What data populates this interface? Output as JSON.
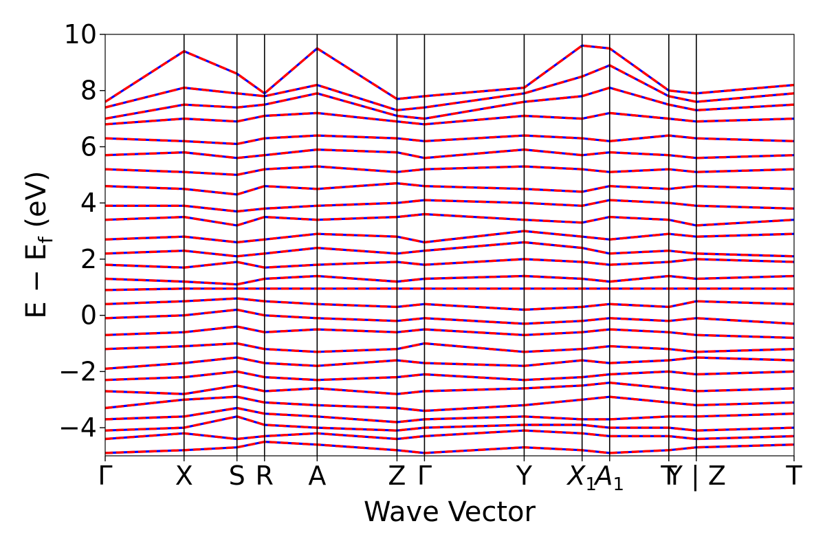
{
  "chart_data": {
    "type": "line",
    "title": "",
    "xlabel": "Wave Vector",
    "ylabel": "E − E",
    "ylabel_subscript": "f",
    "ylabel_unit": "(eV)",
    "ylim": [
      -5,
      10
    ],
    "y_ticks": [
      {
        "value": 10,
        "label": "10"
      },
      {
        "value": 8,
        "label": "8"
      },
      {
        "value": 6,
        "label": "6"
      },
      {
        "value": 4,
        "label": "4"
      },
      {
        "value": 2,
        "label": "2"
      },
      {
        "value": 0,
        "label": "0"
      },
      {
        "value": -2,
        "label": "−2"
      },
      {
        "value": -4,
        "label": "−4"
      }
    ],
    "kpath": [
      {
        "label": "Γ",
        "k": 0.0
      },
      {
        "label": "X",
        "k": 0.1145
      },
      {
        "label": "S",
        "k": 0.1913
      },
      {
        "label": "R",
        "k": 0.2313
      },
      {
        "label": "A",
        "k": 0.3077
      },
      {
        "label": "Z",
        "k": 0.4236
      },
      {
        "label": "Γ",
        "k": 0.4635
      },
      {
        "label": "Y",
        "k": 0.6082
      },
      {
        "label": "X",
        "sub": "1",
        "italic": true,
        "k": 0.6923
      },
      {
        "label": "A",
        "sub": "1",
        "italic": true,
        "k": 0.7323
      },
      {
        "label": "T",
        "k": 0.8182
      },
      {
        "label": "Y",
        "k": 0.8182
      },
      {
        "label": "Y | Z",
        "k": 0.8581
      },
      {
        "label": "T",
        "k": 1.0
      }
    ],
    "tick_labels_display": [
      {
        "text": "Γ",
        "k": 0.0
      },
      {
        "text": "X",
        "k": 0.1145
      },
      {
        "text": "S",
        "k": 0.1913
      },
      {
        "text": "R",
        "k": 0.2313
      },
      {
        "text": "A",
        "k": 0.3077
      },
      {
        "text": "Z",
        "k": 0.4236
      },
      {
        "text": "Γ",
        "k": 0.4635
      },
      {
        "text": "Y",
        "k": 0.6082
      },
      {
        "text": "X",
        "sub": "1",
        "italic": true,
        "k": 0.6923
      },
      {
        "text": "A",
        "sub": "1",
        "italic": true,
        "k": 0.7323
      },
      {
        "text": "T",
        "k": 0.8182
      },
      {
        "text": "Y | Z",
        "k": 0.8581
      },
      {
        "text": "T",
        "k": 1.0
      }
    ],
    "vertical_lines_k": [
      0.1145,
      0.1913,
      0.2313,
      0.3077,
      0.4236,
      0.4635,
      0.6082,
      0.6923,
      0.7323,
      0.8182,
      0.8581
    ],
    "series": [
      {
        "style": "solid",
        "color": "#0000ff"
      },
      {
        "style": "dashed",
        "color": "#ff0000"
      }
    ],
    "bands": [
      {
        "k": [
          0,
          0.1145,
          0.1913,
          0.2313,
          0.3077,
          0.4236,
          0.4635,
          0.6082,
          0.6923,
          0.7323,
          0.8182,
          0.8581,
          1.0
        ],
        "E": [
          -4.9,
          -4.8,
          -4.7,
          -4.5,
          -4.6,
          -4.8,
          -4.9,
          -4.7,
          -4.8,
          -4.9,
          -4.8,
          -4.7,
          -4.6
        ]
      },
      {
        "k": [
          0,
          0.1145,
          0.1913,
          0.2313,
          0.3077,
          0.4236,
          0.4635,
          0.6082,
          0.6923,
          0.7323,
          0.8182,
          0.8581,
          1.0
        ],
        "E": [
          -4.4,
          -4.2,
          -4.4,
          -4.3,
          -4.2,
          -4.4,
          -4.3,
          -4.1,
          -4.2,
          -4.3,
          -4.3,
          -4.4,
          -4.3
        ]
      },
      {
        "k": [
          0,
          0.1145,
          0.1913,
          0.2313,
          0.3077,
          0.4236,
          0.4635,
          0.6082,
          0.6923,
          0.7323,
          0.8182,
          0.8581,
          1.0
        ],
        "E": [
          -4.1,
          -4.0,
          -3.6,
          -3.9,
          -4.0,
          -4.1,
          -4.0,
          -3.9,
          -3.9,
          -4.0,
          -4.0,
          -4.1,
          -4.0
        ]
      },
      {
        "k": [
          0,
          0.1145,
          0.1913,
          0.2313,
          0.3077,
          0.4236,
          0.4635,
          0.6082,
          0.6923,
          0.7323,
          0.8182,
          0.8581,
          1.0
        ],
        "E": [
          -3.7,
          -3.6,
          -3.3,
          -3.5,
          -3.6,
          -3.8,
          -3.7,
          -3.6,
          -3.7,
          -3.7,
          -3.6,
          -3.6,
          -3.5
        ]
      },
      {
        "k": [
          0,
          0.1145,
          0.1913,
          0.2313,
          0.3077,
          0.4236,
          0.4635,
          0.6082,
          0.6923,
          0.7323,
          0.8182,
          0.8581,
          1.0
        ],
        "E": [
          -3.3,
          -3.0,
          -2.9,
          -3.1,
          -3.2,
          -3.3,
          -3.4,
          -3.2,
          -3.0,
          -2.9,
          -3.1,
          -3.2,
          -3.1
        ]
      },
      {
        "k": [
          0,
          0.1145,
          0.1913,
          0.2313,
          0.3077,
          0.4236,
          0.4635,
          0.6082,
          0.6923,
          0.7323,
          0.8182,
          0.8581,
          1.0
        ],
        "E": [
          -2.7,
          -2.8,
          -2.5,
          -2.7,
          -2.6,
          -2.8,
          -2.7,
          -2.6,
          -2.5,
          -2.4,
          -2.6,
          -2.7,
          -2.6
        ]
      },
      {
        "k": [
          0,
          0.1145,
          0.1913,
          0.2313,
          0.3077,
          0.4236,
          0.4635,
          0.6082,
          0.6923,
          0.7323,
          0.8182,
          0.8581,
          1.0
        ],
        "E": [
          -2.3,
          -2.2,
          -2.0,
          -2.2,
          -2.3,
          -2.2,
          -2.1,
          -2.3,
          -2.2,
          -2.1,
          -2.0,
          -2.1,
          -2.0
        ]
      },
      {
        "k": [
          0,
          0.1145,
          0.1913,
          0.2313,
          0.3077,
          0.4236,
          0.4635,
          0.6082,
          0.6923,
          0.7323,
          0.8182,
          0.8581,
          1.0
        ],
        "E": [
          -1.9,
          -1.7,
          -1.5,
          -1.7,
          -1.8,
          -1.6,
          -1.7,
          -1.8,
          -1.6,
          -1.7,
          -1.6,
          -1.5,
          -1.6
        ]
      },
      {
        "k": [
          0,
          0.1145,
          0.1913,
          0.2313,
          0.3077,
          0.4236,
          0.4635,
          0.6082,
          0.6923,
          0.7323,
          0.8182,
          0.8581,
          1.0
        ],
        "E": [
          -1.2,
          -1.1,
          -1.0,
          -1.2,
          -1.3,
          -1.2,
          -1.0,
          -1.3,
          -1.2,
          -1.1,
          -1.2,
          -1.3,
          -1.2
        ]
      },
      {
        "k": [
          0,
          0.1145,
          0.1913,
          0.2313,
          0.3077,
          0.4236,
          0.4635,
          0.6082,
          0.6923,
          0.7323,
          0.8182,
          0.8581,
          1.0
        ],
        "E": [
          -0.7,
          -0.6,
          -0.4,
          -0.6,
          -0.5,
          -0.6,
          -0.5,
          -0.7,
          -0.6,
          -0.5,
          -0.6,
          -0.7,
          -0.8
        ]
      },
      {
        "k": [
          0,
          0.1145,
          0.1913,
          0.2313,
          0.3077,
          0.4236,
          0.4635,
          0.6082,
          0.6923,
          0.7323,
          0.8182,
          0.8581,
          1.0
        ],
        "E": [
          -0.1,
          0.0,
          0.2,
          0.0,
          -0.1,
          -0.2,
          -0.1,
          -0.3,
          -0.2,
          -0.1,
          -0.2,
          -0.1,
          -0.3
        ]
      },
      {
        "k": [
          0,
          0.1145,
          0.1913,
          0.2313,
          0.3077,
          0.4236,
          0.4635,
          0.6082,
          0.6923,
          0.7323,
          0.8182,
          0.8581,
          1.0
        ],
        "E": [
          0.4,
          0.5,
          0.6,
          0.5,
          0.4,
          0.3,
          0.4,
          0.2,
          0.3,
          0.4,
          0.3,
          0.5,
          0.4
        ]
      },
      {
        "k": [
          0,
          0.1145,
          0.1913,
          0.2313,
          0.3077,
          0.4236,
          0.4635,
          0.6082,
          0.6923,
          0.7323,
          0.8182,
          0.8581,
          1.0
        ],
        "E": [
          0.9,
          0.95,
          0.95,
          0.95,
          0.95,
          0.95,
          0.95,
          0.95,
          0.95,
          0.95,
          0.95,
          0.95,
          0.95
        ]
      },
      {
        "k": [
          0,
          0.1145,
          0.1913,
          0.2313,
          0.3077,
          0.4236,
          0.4635,
          0.6082,
          0.6923,
          0.7323,
          0.8182,
          0.8581,
          1.0
        ],
        "E": [
          1.3,
          1.2,
          1.1,
          1.3,
          1.4,
          1.2,
          1.3,
          1.4,
          1.3,
          1.2,
          1.4,
          1.3,
          1.4
        ]
      },
      {
        "k": [
          0,
          0.1145,
          0.1913,
          0.2313,
          0.3077,
          0.4236,
          0.4635,
          0.6082,
          0.6923,
          0.7323,
          0.8182,
          0.8581,
          1.0
        ],
        "E": [
          1.8,
          1.7,
          1.9,
          1.7,
          1.8,
          1.9,
          1.8,
          2.0,
          1.9,
          1.8,
          1.9,
          2.0,
          1.9
        ]
      },
      {
        "k": [
          0,
          0.1145,
          0.1913,
          0.2313,
          0.3077,
          0.4236,
          0.4635,
          0.6082,
          0.6923,
          0.7323,
          0.8182,
          0.8581,
          1.0
        ],
        "E": [
          2.2,
          2.3,
          2.1,
          2.2,
          2.4,
          2.2,
          2.3,
          2.6,
          2.4,
          2.2,
          2.3,
          2.2,
          2.1
        ]
      },
      {
        "k": [
          0,
          0.1145,
          0.1913,
          0.2313,
          0.3077,
          0.4236,
          0.4635,
          0.6082,
          0.6923,
          0.7323,
          0.8182,
          0.8581,
          1.0
        ],
        "E": [
          2.7,
          2.8,
          2.6,
          2.7,
          2.9,
          2.8,
          2.6,
          3.0,
          2.8,
          2.7,
          2.9,
          2.8,
          2.9
        ]
      },
      {
        "k": [
          0,
          0.1145,
          0.1913,
          0.2313,
          0.3077,
          0.4236,
          0.4635,
          0.6082,
          0.6923,
          0.7323,
          0.8182,
          0.8581,
          1.0
        ],
        "E": [
          3.4,
          3.5,
          3.2,
          3.5,
          3.4,
          3.5,
          3.6,
          3.4,
          3.3,
          3.5,
          3.4,
          3.2,
          3.4
        ]
      },
      {
        "k": [
          0,
          0.1145,
          0.1913,
          0.2313,
          0.3077,
          0.4236,
          0.4635,
          0.6082,
          0.6923,
          0.7323,
          0.8182,
          0.8581,
          1.0
        ],
        "E": [
          3.9,
          3.9,
          3.7,
          3.8,
          3.9,
          4.0,
          4.1,
          4.0,
          3.9,
          4.1,
          4.0,
          3.9,
          3.8
        ]
      },
      {
        "k": [
          0,
          0.1145,
          0.1913,
          0.2313,
          0.3077,
          0.4236,
          0.4635,
          0.6082,
          0.6923,
          0.7323,
          0.8182,
          0.8581,
          1.0
        ],
        "E": [
          4.6,
          4.5,
          4.3,
          4.6,
          4.5,
          4.7,
          4.6,
          4.5,
          4.4,
          4.6,
          4.5,
          4.6,
          4.5
        ]
      },
      {
        "k": [
          0,
          0.1145,
          0.1913,
          0.2313,
          0.3077,
          0.4236,
          0.4635,
          0.6082,
          0.6923,
          0.7323,
          0.8182,
          0.8581,
          1.0
        ],
        "E": [
          5.2,
          5.1,
          5.0,
          5.2,
          5.3,
          5.1,
          5.2,
          5.3,
          5.2,
          5.1,
          5.2,
          5.1,
          5.2
        ]
      },
      {
        "k": [
          0,
          0.1145,
          0.1913,
          0.2313,
          0.3077,
          0.4236,
          0.4635,
          0.6082,
          0.6923,
          0.7323,
          0.8182,
          0.8581,
          1.0
        ],
        "E": [
          5.7,
          5.8,
          5.6,
          5.7,
          5.9,
          5.8,
          5.6,
          5.9,
          5.7,
          5.8,
          5.7,
          5.6,
          5.7
        ]
      },
      {
        "k": [
          0,
          0.1145,
          0.1913,
          0.2313,
          0.3077,
          0.4236,
          0.4635,
          0.6082,
          0.6923,
          0.7323,
          0.8182,
          0.8581,
          1.0
        ],
        "E": [
          6.3,
          6.2,
          6.1,
          6.3,
          6.4,
          6.3,
          6.2,
          6.4,
          6.3,
          6.2,
          6.4,
          6.3,
          6.2
        ]
      },
      {
        "k": [
          0,
          0.1145,
          0.1913,
          0.2313,
          0.3077,
          0.4236,
          0.4635,
          0.6082,
          0.6923,
          0.7323,
          0.8182,
          0.8581,
          1.0
        ],
        "E": [
          6.8,
          7.0,
          6.9,
          7.1,
          7.2,
          6.9,
          6.8,
          7.1,
          7.0,
          7.2,
          7.0,
          6.9,
          7.0
        ]
      },
      {
        "k": [
          0,
          0.1145,
          0.1913,
          0.2313,
          0.3077,
          0.4236,
          0.4635,
          0.6082,
          0.6923,
          0.7323,
          0.8182,
          0.8581,
          1.0
        ],
        "E": [
          7.0,
          7.5,
          7.4,
          7.5,
          7.9,
          7.1,
          7.0,
          7.6,
          7.8,
          8.1,
          7.5,
          7.3,
          7.5
        ]
      },
      {
        "k": [
          0,
          0.1145,
          0.1913,
          0.2313,
          0.3077,
          0.4236,
          0.4635,
          0.6082,
          0.6923,
          0.7323,
          0.8182,
          0.8581,
          1.0
        ],
        "E": [
          7.4,
          8.1,
          7.9,
          7.8,
          8.2,
          7.3,
          7.4,
          7.9,
          8.5,
          8.9,
          7.8,
          7.6,
          7.9
        ]
      },
      {
        "k": [
          0,
          0.1145,
          0.1913,
          0.2313,
          0.3077,
          0.4236,
          0.4635,
          0.6082,
          0.6923,
          0.7323,
          0.8182,
          0.8581,
          1.0
        ],
        "E": [
          7.6,
          9.4,
          8.6,
          7.9,
          9.5,
          7.7,
          7.8,
          8.1,
          9.6,
          9.5,
          8.0,
          7.9,
          8.2
        ]
      }
    ]
  }
}
